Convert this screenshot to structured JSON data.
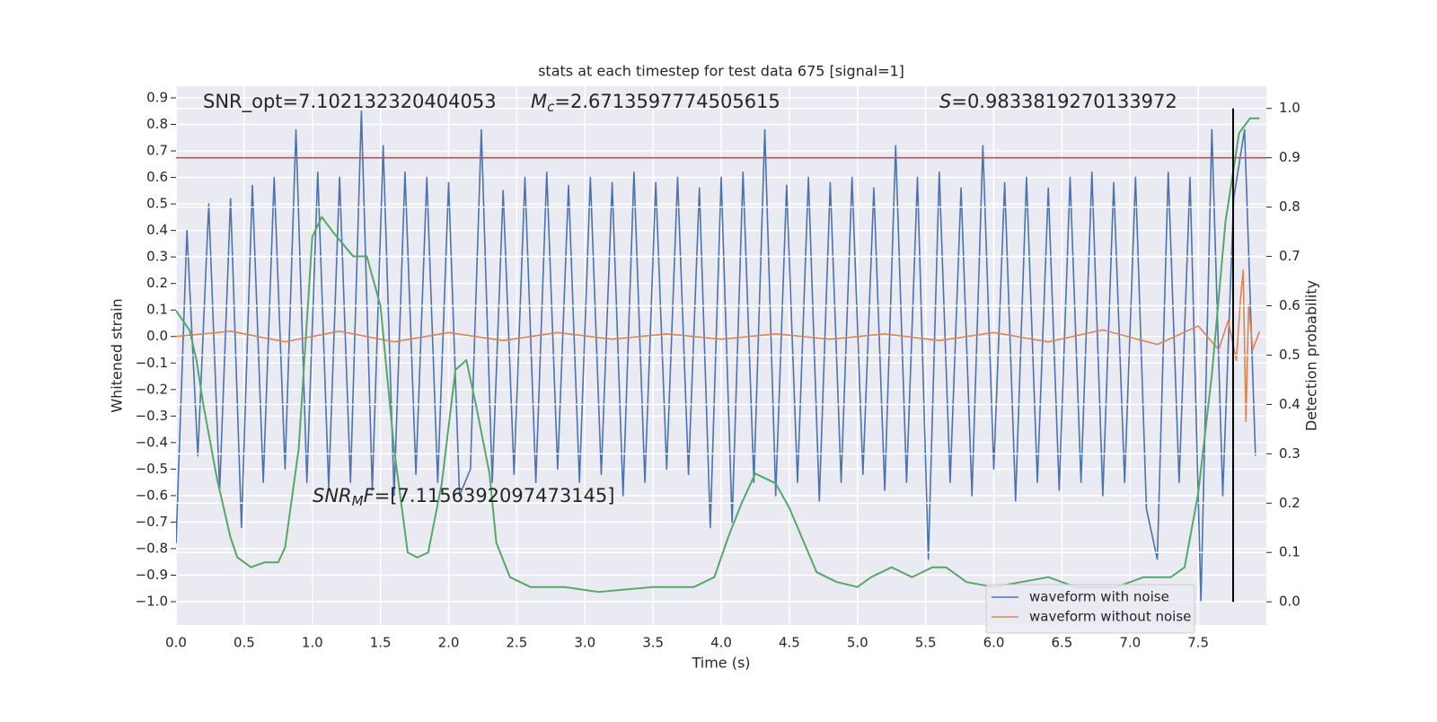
{
  "chart_data": {
    "type": "line",
    "title": "stats at each timestep for test data 675 [signal=1]",
    "x_label": "Time (s)",
    "y_label": "Whitened strain",
    "y2_label": "Detection probability",
    "annotations": [
      {
        "text": "SNR_opt=7.102132320404053"
      },
      {
        "symbol": "M",
        "sub": "c",
        "text": "=2.6713597774505615"
      },
      {
        "symbol": "S",
        "text": "=0.9833819270133972"
      },
      {
        "symbol": "SNR",
        "sub": "M",
        "symbol2": "F",
        "text": "=[7.1156392097473145]"
      }
    ],
    "xlim": [
      0,
      8
    ],
    "ylim": [
      -1.088,
      0.944
    ],
    "y2lim": [
      -0.047,
      1.045
    ],
    "xticks": [
      {
        "value": 0,
        "label": "0.0"
      },
      0.5,
      {
        "value": 1,
        "label": "1.0"
      },
      1.5,
      {
        "value": 2,
        "label": "2.0"
      },
      2.5,
      {
        "value": 3,
        "label": "3.0"
      },
      3.5,
      {
        "value": 4,
        "label": "4.0"
      },
      4.5,
      {
        "value": 5,
        "label": "5.0"
      },
      5.5,
      {
        "value": 6,
        "label": "6.0"
      },
      6.5,
      {
        "value": 7,
        "label": "7.0"
      },
      7.5
    ],
    "yticks": [
      {
        "value": -1,
        "label": "−1.0"
      },
      {
        "value": -0.9,
        "label": "−0.9"
      },
      {
        "value": -0.8,
        "label": "−0.8"
      },
      {
        "value": -0.7,
        "label": "−0.7"
      },
      {
        "value": -0.6,
        "label": "−0.6"
      },
      {
        "value": -0.5,
        "label": "−0.5"
      },
      {
        "value": -0.4,
        "label": "−0.4"
      },
      {
        "value": -0.3,
        "label": "−0.3"
      },
      {
        "value": -0.2,
        "label": "−0.2"
      },
      {
        "value": -0.1,
        "label": "−0.1"
      },
      {
        "value": 0,
        "label": "0.0"
      },
      0.1,
      0.2,
      0.3,
      0.4,
      0.5,
      0.6,
      0.7,
      0.8,
      0.9
    ],
    "y2ticks": [
      {
        "value": 0,
        "label": "0.0"
      },
      0.1,
      0.2,
      0.3,
      0.4,
      0.5,
      0.6,
      0.7,
      0.8,
      0.9,
      {
        "value": 1,
        "label": "1.0"
      }
    ],
    "grid": true,
    "legend": "lower right",
    "series": [
      {
        "name": "waveform with noise",
        "color": "#4c72b0",
        "axis": "y",
        "x": [
          0,
          0.08,
          0.16,
          0.24,
          0.32,
          0.4,
          0.48,
          0.56,
          0.64,
          0.72,
          0.8,
          0.88,
          0.96,
          1.04,
          1.12,
          1.2,
          1.28,
          1.36,
          1.44,
          1.52,
          1.6,
          1.68,
          1.76,
          1.84,
          1.92,
          2,
          2.08,
          2.16,
          2.24,
          2.32,
          2.4,
          2.48,
          2.56,
          2.64,
          2.72,
          2.8,
          2.88,
          2.96,
          3.04,
          3.12,
          3.2,
          3.28,
          3.36,
          3.44,
          3.52,
          3.6,
          3.68,
          3.76,
          3.84,
          3.92,
          4,
          4.08,
          4.16,
          4.24,
          4.32,
          4.4,
          4.48,
          4.56,
          4.64,
          4.72,
          4.8,
          4.88,
          4.96,
          5.04,
          5.12,
          5.2,
          5.28,
          5.36,
          5.44,
          5.52,
          5.6,
          5.68,
          5.76,
          5.84,
          5.92,
          6,
          6.08,
          6.16,
          6.24,
          6.32,
          6.4,
          6.48,
          6.56,
          6.64,
          6.72,
          6.8,
          6.88,
          6.96,
          7.04,
          7.12,
          7.2,
          7.28,
          7.36,
          7.44,
          7.52,
          7.6,
          7.68,
          7.76,
          7.84,
          7.92
        ],
        "values": [
          -0.78,
          0.4,
          -0.45,
          0.5,
          -0.58,
          0.52,
          -0.72,
          0.57,
          -0.55,
          0.6,
          -0.5,
          0.78,
          -0.55,
          0.62,
          -0.57,
          0.6,
          -0.55,
          0.85,
          -0.58,
          0.72,
          -0.6,
          0.62,
          -0.52,
          0.6,
          -0.55,
          0.58,
          -0.6,
          -0.5,
          0.78,
          -0.55,
          0.55,
          -0.52,
          0.6,
          -0.55,
          0.62,
          -0.5,
          0.57,
          -0.55,
          0.6,
          -0.52,
          0.58,
          -0.6,
          0.62,
          -0.55,
          0.58,
          -0.5,
          0.6,
          -0.52,
          0.56,
          -0.72,
          0.6,
          -0.7,
          0.62,
          -0.55,
          0.78,
          -0.6,
          0.57,
          -0.55,
          0.6,
          -0.62,
          0.58,
          -0.55,
          0.6,
          -0.52,
          0.56,
          -0.58,
          0.72,
          -0.55,
          0.6,
          -0.84,
          0.62,
          -0.55,
          0.56,
          -0.6,
          0.72,
          -0.5,
          0.58,
          -0.62,
          0.6,
          -0.55,
          0.56,
          -0.58,
          0.6,
          -0.55,
          0.62,
          -0.6,
          0.58,
          -0.55,
          0.6,
          -0.65,
          -0.84,
          0.62,
          -0.55,
          0.6,
          -1.0,
          0.78,
          -0.6,
          0.52,
          0.78,
          -0.45
        ]
      },
      {
        "name": "waveform without noise",
        "color": "#dd8452",
        "axis": "y",
        "x": [
          0,
          0.4,
          0.8,
          1.2,
          1.6,
          2,
          2.4,
          2.8,
          3.2,
          3.6,
          4,
          4.4,
          4.8,
          5.2,
          5.6,
          6,
          6.4,
          6.8,
          7.2,
          7.5,
          7.65,
          7.72,
          7.78,
          7.81,
          7.83,
          7.85,
          7.87,
          7.9,
          7.95
        ],
        "values": [
          0,
          0.02,
          -0.02,
          0.02,
          -0.02,
          0.015,
          -0.015,
          0.015,
          -0.01,
          0.01,
          -0.01,
          0.01,
          -0.01,
          0.01,
          -0.015,
          0.015,
          -0.02,
          0.025,
          -0.03,
          0.04,
          -0.05,
          0.06,
          -0.09,
          0.14,
          0.25,
          -0.32,
          0.12,
          -0.05,
          0.02
        ]
      },
      {
        "color": "#55a868",
        "axis": "y2",
        "x": [
          0,
          0.1,
          0.15,
          0.2,
          0.3,
          0.4,
          0.45,
          0.55,
          0.65,
          0.75,
          0.8,
          0.9,
          1.0,
          1.07,
          1.15,
          1.3,
          1.4,
          1.5,
          1.6,
          1.7,
          1.77,
          1.85,
          1.95,
          2.05,
          2.13,
          2.2,
          2.3,
          2.35,
          2.45,
          2.6,
          2.85,
          3.1,
          3.5,
          3.8,
          3.95,
          4.05,
          4.15,
          4.25,
          4.4,
          4.5,
          4.7,
          4.85,
          5.0,
          5.1,
          5.25,
          5.4,
          5.55,
          5.65,
          5.8,
          6.0,
          6.2,
          6.4,
          6.6,
          6.9,
          7.1,
          7.3,
          7.4,
          7.5,
          7.6,
          7.7,
          7.8,
          7.88,
          7.95
        ],
        "values": [
          0.59,
          0.55,
          0.49,
          0.4,
          0.25,
          0.13,
          0.09,
          0.07,
          0.08,
          0.08,
          0.11,
          0.31,
          0.74,
          0.78,
          0.75,
          0.7,
          0.7,
          0.6,
          0.31,
          0.1,
          0.09,
          0.1,
          0.24,
          0.47,
          0.49,
          0.4,
          0.26,
          0.12,
          0.05,
          0.03,
          0.03,
          0.02,
          0.03,
          0.03,
          0.05,
          0.13,
          0.2,
          0.26,
          0.24,
          0.19,
          0.06,
          0.04,
          0.03,
          0.05,
          0.07,
          0.05,
          0.07,
          0.07,
          0.04,
          0.03,
          0.04,
          0.05,
          0.03,
          0.03,
          0.05,
          0.05,
          0.07,
          0.22,
          0.46,
          0.77,
          0.95,
          0.98,
          0.98
        ]
      }
    ],
    "hlines": [
      {
        "value": 0.9,
        "axis": "y2",
        "color": "#c44e52"
      }
    ],
    "vlines": [
      {
        "value": 7.756,
        "axis": "y2",
        "range": [
          0,
          1
        ],
        "color": "#000000"
      }
    ]
  }
}
